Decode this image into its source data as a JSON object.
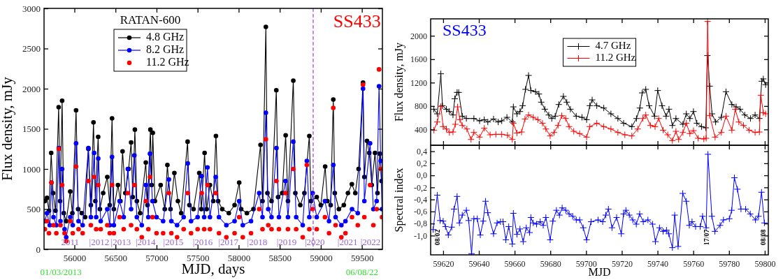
{
  "chart_data": [
    {
      "type": "line",
      "xlabel": "MJD, days",
      "ylabel": "Flux density, mJy",
      "legend_title": "RATAN-600",
      "legend": "top left",
      "marker": "circle",
      "line_style": "solid",
      "grid": false,
      "xlim": [
        55630,
        59750
      ],
      "ylim": [
        0,
        3000
      ],
      "xticks": [
        56000,
        56500,
        57000,
        57500,
        58000,
        58500,
        59000,
        59500
      ],
      "yticks": [
        0,
        500,
        1000,
        1500,
        2000,
        2500,
        3000
      ],
      "annotations": [
        "SS433",
        "2011",
        "|2012",
        "|2013",
        "|2014",
        "|2015",
        "|2016",
        "|2017",
        "|2018",
        "|2019",
        "|2020",
        "|2021",
        "|2022",
        "01/03/2013",
        "06/08/22"
      ],
      "series": [
        {
          "name": "4.8 GHz",
          "color": "#000000",
          "x": [
            55640,
            55666,
            55690,
            55717,
            55740,
            55770,
            55808,
            55825,
            55850,
            55870,
            55900,
            55949,
            55975,
            56020,
            56045,
            56090,
            56130,
            56170,
            56200,
            56232,
            56255,
            56289,
            56310,
            56350,
            56400,
            56430,
            56458,
            56480,
            56530,
            56560,
            56586,
            56620,
            56660,
            56690,
            56710,
            56736,
            56760,
            56800,
            56869,
            56890,
            56925,
            56940,
            56954,
            56980,
            57050,
            57100,
            57132,
            57170,
            57217,
            57260,
            57300,
            57378,
            57400,
            57450,
            57520,
            57545,
            57585,
            57610,
            57650,
            57690,
            57723,
            57750,
            57800,
            57880,
            57950,
            58006,
            58030,
            58100,
            58180,
            58266,
            58290,
            58331,
            58350,
            58400,
            58458,
            58480,
            58530,
            58572,
            58600,
            58665,
            58690,
            58750,
            58800,
            58860,
            58880,
            58950,
            59000,
            59053,
            59080,
            59120,
            59152,
            59170,
            59220,
            59280,
            59330,
            59378,
            59420,
            59460,
            59514,
            59530,
            59562,
            59590,
            59620,
            59660,
            59690,
            59718,
            59740
          ],
          "values": [
            600,
            640,
            480,
            1200,
            700,
            480,
            1770,
            600,
            1850,
            450,
            350,
            720,
            450,
            1730,
            500,
            450,
            400,
            1250,
            550,
            1580,
            600,
            1400,
            500,
            700,
            900,
            550,
            1630,
            500,
            800,
            600,
            1220,
            700,
            1000,
            1330,
            650,
            1490,
            600,
            450,
            1080,
            550,
            1490,
            800,
            1450,
            600,
            800,
            500,
            1050,
            500,
            950,
            600,
            450,
            1340,
            550,
            500,
            950,
            500,
            1200,
            500,
            800,
            600,
            1410,
            600,
            500,
            450,
            550,
            830,
            500,
            450,
            500,
            1300,
            600,
            2770,
            700,
            600,
            1980,
            650,
            700,
            1420,
            600,
            2100,
            700,
            550,
            700,
            1410,
            600,
            650,
            550,
            1030,
            600,
            550,
            1865,
            700,
            500,
            550,
            700,
            810,
            700,
            1000,
            2075,
            900,
            1350,
            1200,
            800,
            1200,
            700,
            1190,
            850
          ]
        },
        {
          "name": "8.2 GHz",
          "color": "#0000ff",
          "x": [
            55640,
            55666,
            55700,
            55720,
            55745,
            55780,
            55810,
            55830,
            55850,
            55880,
            55900,
            55949,
            55980,
            56020,
            56050,
            56100,
            56170,
            56200,
            56240,
            56265,
            56290,
            56320,
            56400,
            56430,
            56458,
            56480,
            56550,
            56600,
            56650,
            56690,
            56730,
            56760,
            56820,
            56870,
            56900,
            56920,
            56950,
            57000,
            57080,
            57150,
            57180,
            57250,
            57330,
            57380,
            57420,
            57500,
            57550,
            57580,
            57620,
            57650,
            57720,
            57760,
            57850,
            57950,
            58006,
            58050,
            58150,
            58250,
            58290,
            58331,
            58360,
            58400,
            58460,
            58490,
            58570,
            58600,
            58665,
            58700,
            58780,
            58830,
            58860,
            58900,
            58950,
            59050,
            59100,
            59152,
            59180,
            59250,
            59300,
            59380,
            59450,
            59514,
            59530,
            59600,
            59640,
            59680,
            59709,
            59730,
            59745
          ],
          "values": [
            350,
            450,
            300,
            830,
            400,
            300,
            1260,
            350,
            1000,
            250,
            150,
            400,
            300,
            1320,
            350,
            300,
            1260,
            400,
            1200,
            400,
            1130,
            350,
            500,
            300,
            1150,
            300,
            600,
            400,
            1000,
            500,
            1170,
            400,
            300,
            800,
            400,
            1190,
            600,
            400,
            350,
            870,
            350,
            300,
            400,
            1070,
            350,
            400,
            910,
            400,
            1020,
            400,
            900,
            400,
            300,
            350,
            600,
            300,
            350,
            700,
            400,
            1700,
            500,
            400,
            1260,
            400,
            850,
            400,
            1340,
            400,
            300,
            1100,
            400,
            700,
            400,
            600,
            350,
            1050,
            400,
            300,
            350,
            500,
            450,
            2000,
            600,
            1320,
            500,
            600,
            2030,
            1100,
            500
          ]
        },
        {
          "name": "11.2 GHz",
          "type": "scatter",
          "color": "#ff0000",
          "x": [
            55640,
            55666,
            55690,
            55720,
            55745,
            55780,
            55810,
            55830,
            55850,
            55880,
            55900,
            55949,
            55980,
            56020,
            56050,
            56100,
            56170,
            56200,
            56240,
            56265,
            56290,
            56320,
            56400,
            56430,
            56458,
            56480,
            56550,
            56600,
            56650,
            56690,
            56730,
            56760,
            56820,
            56870,
            56900,
            56920,
            56950,
            57000,
            57080,
            57150,
            57180,
            57250,
            57330,
            57380,
            57420,
            57500,
            57550,
            57580,
            57620,
            57650,
            57720,
            57760,
            57850,
            57950,
            58006,
            58050,
            58150,
            58250,
            58290,
            58331,
            58360,
            58400,
            58460,
            58490,
            58570,
            58600,
            58665,
            58700,
            58780,
            58830,
            58860,
            58900,
            58950,
            59050,
            59100,
            59152,
            59180,
            59250,
            59300,
            59380,
            59450,
            59514,
            59530,
            59600,
            59640,
            59680,
            59709,
            59730,
            59745
          ],
          "values": [
            250,
            350,
            200,
            830,
            300,
            200,
            1250,
            300,
            800,
            200,
            100,
            350,
            200,
            1030,
            250,
            200,
            850,
            300,
            900,
            250,
            800,
            250,
            300,
            200,
            800,
            200,
            400,
            250,
            700,
            300,
            800,
            250,
            150,
            600,
            250,
            900,
            400,
            200,
            200,
            700,
            200,
            150,
            250,
            700,
            200,
            250,
            700,
            250,
            800,
            250,
            700,
            200,
            150,
            200,
            400,
            150,
            200,
            500,
            250,
            1370,
            300,
            250,
            850,
            250,
            700,
            250,
            1000,
            250,
            150,
            1050,
            250,
            500,
            250,
            400,
            200,
            1760,
            300,
            150,
            200,
            400,
            300,
            2050,
            400,
            800,
            300,
            500,
            2240,
            1000,
            400
          ]
        }
      ],
      "ref_lines": [
        {
          "axis": "x",
          "value": 58907,
          "color": "#a040e0",
          "line_style": "dashed"
        }
      ]
    },
    {
      "type": "line",
      "ylabel": "Flux density, mJy",
      "legend": "top",
      "marker": "cross",
      "line_style": "solid",
      "grid": false,
      "tick_labels": "y",
      "xlim": [
        59613,
        59802
      ],
      "ylim": [
        130,
        2290
      ],
      "xticks": [
        59620,
        59640,
        59660,
        59680,
        59700,
        59720,
        59740,
        59760,
        59780,
        59800
      ],
      "yticks": [
        400,
        800,
        1200,
        1600,
        2000
      ],
      "annotations": [
        "SS433"
      ],
      "series": [
        {
          "name": "4.7 GHz",
          "color": "#000000",
          "x": [
            59614.8,
            59616.7,
            59618.7,
            59619.6,
            59621.8,
            59623.5,
            59625.5,
            59626.5,
            59627.8,
            59628.7,
            59630.7,
            59633,
            59637.2,
            59640.4,
            59643,
            59645,
            59648.2,
            59650.8,
            59652.8,
            59655.7,
            59658.7,
            59659.3,
            59661.3,
            59663,
            59664.5,
            59666.1,
            59667.8,
            59669.1,
            59671.7,
            59673.6,
            59674.9,
            59676.9,
            59679.1,
            59680.8,
            59682.7,
            59684.7,
            59687.3,
            59689.2,
            59691.2,
            59694.5,
            59697.7,
            59700.3,
            59702.1,
            59703.4,
            59706,
            59709.9,
            59713.9,
            59717.8,
            59721,
            59725.6,
            59728.2,
            59730.1,
            59731.4,
            59733.4,
            59735.3,
            59738.3,
            59740.1,
            59742.5,
            59744.8,
            59746.4,
            59748.3,
            59750.3,
            59754.2,
            59756.1,
            59758.1,
            59760.1,
            59762,
            59764.6,
            59767,
            59767.9,
            59769.2,
            59770.5,
            59772.5,
            59775.7,
            59778.3,
            59781.6,
            59784,
            59786.2,
            59788.8,
            59792,
            59794.6,
            59797,
            59798.3,
            59799.2,
            59800.5
          ],
          "values": [
            746,
            667,
            1351,
            806,
            746,
            706,
            647,
            925,
            1033,
            1033,
            627,
            587,
            587,
            547,
            567,
            527,
            579,
            527,
            547,
            607,
            527,
            786,
            667,
            706,
            806,
            1085,
            1323,
            1065,
            1045,
            1005,
            866,
            746,
            647,
            587,
            627,
            826,
            965,
            866,
            746,
            627,
            607,
            567,
            806,
            905,
            806,
            766,
            667,
            587,
            507,
            448,
            587,
            766,
            1025,
            1085,
            806,
            627,
            1065,
            806,
            627,
            746,
            468,
            587,
            488,
            667,
            587,
            706,
            507,
            448,
            428,
            1662,
            1140,
            667,
            527,
            607,
            1045,
            826,
            786,
            746,
            647,
            587,
            647,
            587,
            1224,
            1264,
            1164
          ]
        },
        {
          "name": "11.2 GHz",
          "color": "#ff0000",
          "x": [
            59614.8,
            59616.7,
            59618.7,
            59620,
            59621.8,
            59623.5,
            59625.5,
            59626.8,
            59628.1,
            59629.4,
            59630.7,
            59633.3,
            59635.6,
            59637.2,
            59640.4,
            59643,
            59646.3,
            59649.5,
            59652.8,
            59656,
            59658.7,
            59659.3,
            59661.3,
            59663.9,
            59665.8,
            59667.8,
            59670.4,
            59673,
            59675.6,
            59677.5,
            59679.9,
            59682.1,
            59684.3,
            59686.4,
            59688.6,
            59690.5,
            59693.1,
            59696.4,
            59700.3,
            59702.1,
            59706,
            59709.9,
            59713.9,
            59717.8,
            59721.7,
            59725.6,
            59728.9,
            59731.8,
            59733.4,
            59736,
            59738.6,
            59740.6,
            59743.1,
            59745.7,
            59748.3,
            59750.3,
            59751.8,
            59754.2,
            59756.1,
            59758.1,
            59760.1,
            59762.7,
            59765.9,
            59767.2,
            59768,
            59769.2,
            59772.2,
            59775.7,
            59778.3,
            59781.6,
            59783.5,
            59785.5,
            59788.1,
            59791.3,
            59794.6,
            59797,
            59797.8,
            59799.2,
            59800.5
          ],
          "values": [
            388,
            527,
            794,
            448,
            408,
            348,
            356,
            488,
            786,
            567,
            468,
            408,
            229,
            348,
            269,
            420,
            309,
            317,
            317,
            301,
            229,
            507,
            340,
            356,
            579,
            647,
            607,
            567,
            507,
            408,
            289,
            348,
            468,
            635,
            587,
            448,
            368,
            329,
            269,
            448,
            507,
            448,
            408,
            348,
            309,
            289,
            408,
            587,
            647,
            468,
            448,
            587,
            388,
            309,
            209,
            368,
            229,
            348,
            507,
            329,
            380,
            249,
            237,
            249,
            2247,
            635,
            269,
            348,
            627,
            388,
            746,
            527,
            468,
            388,
            348,
            356,
            985,
            686,
            667
          ]
        }
      ]
    },
    {
      "type": "line",
      "xlabel": "MJD",
      "ylabel": "Spectral index",
      "marker": "cross",
      "line_style": "solid",
      "grid": false,
      "xlim": [
        59613,
        59802
      ],
      "ylim": [
        -1.32,
        0.5
      ],
      "xticks": [
        59620,
        59640,
        59660,
        59680,
        59700,
        59720,
        59740,
        59760,
        59780,
        59800
      ],
      "yticks": [
        {
          "value": 0.4,
          "label": "0,4"
        },
        {
          "value": 0.2,
          "label": "0,2"
        },
        {
          "value": 0,
          "label": "0,0"
        },
        {
          "value": -0.2,
          "label": "-0,2"
        },
        {
          "value": -0.4,
          "label": "-0,4"
        },
        {
          "value": -0.6,
          "label": "-0,6"
        },
        {
          "value": -0.8,
          "label": "-0,8"
        },
        {
          "value": -1,
          "label": "-1,0"
        }
      ],
      "annotations": [
        "08/02",
        "17/07",
        "08/08"
      ],
      "series": [
        {
          "color": "#0000ff",
          "x": [
            59614.4,
            59616.7,
            59618.3,
            59620,
            59621.3,
            59622.9,
            59624.8,
            59626.1,
            59627.8,
            59629.1,
            59630.7,
            59633,
            59634.3,
            59635.9,
            59637.2,
            59639.1,
            59640.8,
            59642.4,
            59643.7,
            59645,
            59648.2,
            59650.2,
            59652.1,
            59653.5,
            59655.1,
            59656.7,
            59658.7,
            59659.3,
            59661.3,
            59663,
            59664.8,
            59666.5,
            59668.4,
            59669.1,
            59670.4,
            59672.3,
            59674.3,
            59676,
            59677.5,
            59679.9,
            59681.4,
            59683.4,
            59685.1,
            59686.6,
            59688.6,
            59690.5,
            59692.5,
            59694.5,
            59696.4,
            59698.4,
            59700.3,
            59702.8,
            59706.7,
            59709.3,
            59711,
            59712.5,
            59714.5,
            59717.1,
            59719.7,
            59721,
            59722.3,
            59724.2,
            59726.1,
            59728.1,
            59730,
            59732,
            59734.6,
            59737.2,
            59738.8,
            59741.1,
            59743.1,
            59745,
            59746.3,
            59748.3,
            59749.6,
            59751.5,
            59754.1,
            59756.1,
            59757.8,
            59759.3,
            59761.3,
            59763.9,
            59765.2,
            59767.2,
            59768.2,
            59770.4,
            59772.1,
            59775,
            59776.9,
            59780.2,
            59781.5,
            59783,
            59784.7,
            59786.7,
            59789.3,
            59791.9,
            59794.8,
            59796.5,
            59798.2,
            59799.8
          ],
          "values": [
            -0.9,
            -0.33,
            -0.75,
            -0.76,
            -0.85,
            -0.99,
            -0.86,
            -0.56,
            -0.35,
            -0.79,
            -0.66,
            -0.58,
            -0.75,
            -1.3,
            -0.72,
            -0.72,
            -0.99,
            -0.76,
            -0.43,
            -0.62,
            -0.97,
            -0.79,
            -0.77,
            -0.77,
            -1.07,
            -0.85,
            -1.14,
            -0.63,
            -0.98,
            -0.89,
            -1.1,
            -0.87,
            -0.95,
            -0.7,
            -0.79,
            -0.81,
            -0.77,
            -0.83,
            -0.7,
            -1.07,
            -0.76,
            -0.58,
            -0.66,
            -0.54,
            -0.58,
            -0.64,
            -0.68,
            -0.74,
            -0.74,
            -0.87,
            -1.07,
            -0.77,
            -0.74,
            -0.77,
            -0.66,
            -0.56,
            -0.87,
            -0.7,
            -0.97,
            -0.64,
            -0.58,
            -0.66,
            -0.74,
            -0.81,
            -0.64,
            -0.77,
            -0.74,
            -0.81,
            -1.1,
            -0.87,
            -0.93,
            -0.91,
            -0.97,
            -1.2,
            -0.66,
            -1.18,
            -0.3,
            -0.43,
            -0.83,
            -0.77,
            -0.85,
            -0.85,
            -0.68,
            -0.87,
            0.35,
            -0.68,
            -0.93,
            -0.83,
            -0.74,
            -0.72,
            -0.58,
            -0.04,
            -0.23,
            -0.56,
            -0.56,
            -0.64,
            -0.74,
            -0.68,
            -0.28,
            -0.79
          ]
        }
      ]
    }
  ]
}
